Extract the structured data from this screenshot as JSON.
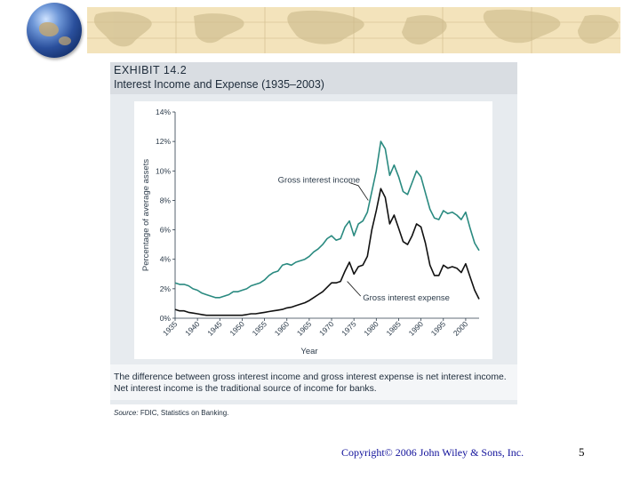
{
  "exhibit": {
    "number": "EXHIBIT 14.2",
    "title": "Interest Income and Expense (1935–2003)"
  },
  "caption": "The difference between gross interest income and gross interest expense is net interest income. Net interest income is the traditional source of income for banks.",
  "source": {
    "label": "Source:",
    "text": "FDIC, Statistics on Banking."
  },
  "footer": {
    "copyright": "Copyright© 2006 John Wiley & Sons, Inc.",
    "page": "5"
  },
  "colors": {
    "income": "#2a8a80",
    "expense": "#111111",
    "band": "#f3e3bb",
    "panel": "#e7ebef"
  },
  "chart_data": {
    "type": "line",
    "xlabel": "Year",
    "ylabel": "Percentage of average assets",
    "xlim": [
      1935,
      2003
    ],
    "ylim": [
      0,
      14
    ],
    "y_ticks": [
      {
        "v": 0,
        "label": "0%"
      },
      {
        "v": 2,
        "label": "2%"
      },
      {
        "v": 4,
        "label": "4%"
      },
      {
        "v": 6,
        "label": "6%"
      },
      {
        "v": 8,
        "label": "8%"
      },
      {
        "v": 10,
        "label": "10%"
      },
      {
        "v": 12,
        "label": "12%"
      },
      {
        "v": 14,
        "label": "14%"
      }
    ],
    "x_ticks": [
      {
        "v": 1935,
        "label": "1935"
      },
      {
        "v": 1940,
        "label": "1940"
      },
      {
        "v": 1945,
        "label": "1945"
      },
      {
        "v": 1950,
        "label": "1950"
      },
      {
        "v": 1955,
        "label": "1955"
      },
      {
        "v": 1960,
        "label": "1960"
      },
      {
        "v": 1965,
        "label": "1965"
      },
      {
        "v": 1970,
        "label": "1970"
      },
      {
        "v": 1975,
        "label": "1975"
      },
      {
        "v": 1980,
        "label": "1980"
      },
      {
        "v": 1985,
        "label": "1985"
      },
      {
        "v": 1990,
        "label": "1990"
      },
      {
        "v": 1995,
        "label": "1995"
      },
      {
        "v": 2000,
        "label": "2000"
      }
    ],
    "grid": false,
    "series": [
      {
        "name": "Gross interest income",
        "x": [
          1935,
          1936,
          1937,
          1938,
          1939,
          1940,
          1941,
          1942,
          1943,
          1944,
          1945,
          1946,
          1947,
          1948,
          1949,
          1950,
          1951,
          1952,
          1953,
          1954,
          1955,
          1956,
          1957,
          1958,
          1959,
          1960,
          1961,
          1962,
          1963,
          1964,
          1965,
          1966,
          1967,
          1968,
          1969,
          1970,
          1971,
          1972,
          1973,
          1974,
          1975,
          1976,
          1977,
          1978,
          1979,
          1980,
          1981,
          1982,
          1983,
          1984,
          1985,
          1986,
          1987,
          1988,
          1989,
          1990,
          1991,
          1992,
          1993,
          1994,
          1995,
          1996,
          1997,
          1998,
          1999,
          2000,
          2001,
          2002,
          2003
        ],
        "values": [
          2.4,
          2.3,
          2.3,
          2.2,
          2.0,
          1.9,
          1.7,
          1.6,
          1.5,
          1.4,
          1.4,
          1.5,
          1.6,
          1.8,
          1.8,
          1.9,
          2.0,
          2.2,
          2.3,
          2.4,
          2.6,
          2.9,
          3.1,
          3.2,
          3.6,
          3.7,
          3.6,
          3.8,
          3.9,
          4.0,
          4.2,
          4.5,
          4.7,
          5.0,
          5.4,
          5.6,
          5.3,
          5.4,
          6.2,
          6.6,
          5.6,
          6.4,
          6.6,
          7.2,
          8.6,
          10.0,
          12.0,
          11.5,
          9.7,
          10.4,
          9.6,
          8.6,
          8.4,
          9.2,
          10.0,
          9.6,
          8.5,
          7.4,
          6.8,
          6.7,
          7.3,
          7.1,
          7.2,
          7.0,
          6.7,
          7.2,
          6.1,
          5.1,
          4.6
        ]
      },
      {
        "name": "Gross interest expense",
        "x": [
          1935,
          1936,
          1937,
          1938,
          1939,
          1940,
          1941,
          1942,
          1943,
          1944,
          1945,
          1946,
          1947,
          1948,
          1949,
          1950,
          1951,
          1952,
          1953,
          1954,
          1955,
          1956,
          1957,
          1958,
          1959,
          1960,
          1961,
          1962,
          1963,
          1964,
          1965,
          1966,
          1967,
          1968,
          1969,
          1970,
          1971,
          1972,
          1973,
          1974,
          1975,
          1976,
          1977,
          1978,
          1979,
          1980,
          1981,
          1982,
          1983,
          1984,
          1985,
          1986,
          1987,
          1988,
          1989,
          1990,
          1991,
          1992,
          1993,
          1994,
          1995,
          1996,
          1997,
          1998,
          1999,
          2000,
          2001,
          2002,
          2003
        ],
        "values": [
          0.6,
          0.5,
          0.5,
          0.4,
          0.35,
          0.3,
          0.25,
          0.2,
          0.2,
          0.2,
          0.2,
          0.2,
          0.2,
          0.2,
          0.2,
          0.2,
          0.25,
          0.3,
          0.3,
          0.35,
          0.4,
          0.45,
          0.5,
          0.55,
          0.6,
          0.7,
          0.75,
          0.85,
          0.95,
          1.05,
          1.2,
          1.4,
          1.6,
          1.8,
          2.1,
          2.4,
          2.4,
          2.5,
          3.2,
          3.8,
          3.0,
          3.5,
          3.6,
          4.2,
          6.0,
          7.3,
          8.8,
          8.2,
          6.4,
          7.0,
          6.1,
          5.2,
          5.0,
          5.6,
          6.4,
          6.2,
          5.1,
          3.6,
          2.9,
          2.9,
          3.6,
          3.4,
          3.5,
          3.4,
          3.1,
          3.7,
          2.8,
          1.9,
          1.3
        ]
      }
    ],
    "annotations": [
      {
        "text": "Gross interest income",
        "series": 0
      },
      {
        "text": "Gross interest expense",
        "series": 1
      }
    ]
  }
}
